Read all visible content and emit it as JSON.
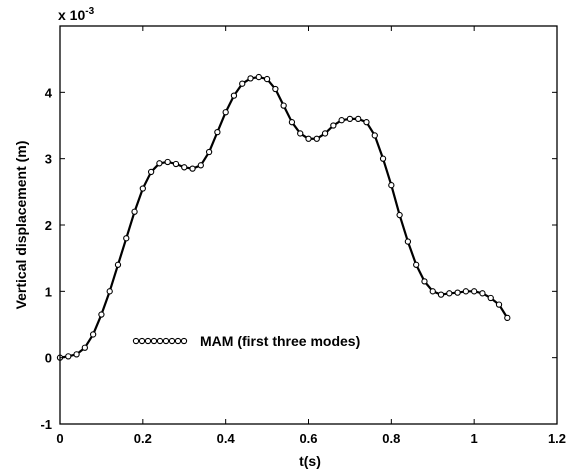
{
  "chart_data": {
    "type": "line",
    "xlabel": "t(s)",
    "ylabel": "Vertical displacement (m)",
    "y_multiplier_base": "x 10",
    "y_multiplier_exp": "-3",
    "xlim": [
      0,
      1.2
    ],
    "ylim": [
      -1,
      5
    ],
    "x_ticks": [
      0,
      0.2,
      0.4,
      0.6,
      0.8,
      1,
      1.2
    ],
    "x_tick_labels": [
      "0",
      "0.2",
      "0.4",
      "0.6",
      "0.8",
      "1",
      "1.2"
    ],
    "y_ticks": [
      -1,
      0,
      1,
      2,
      3,
      4
    ],
    "y_tick_labels": [
      "-1",
      "0",
      "1",
      "2",
      "3",
      "4"
    ],
    "grid": false,
    "legend_position": "lower-left",
    "series": [
      {
        "name": "MAM (first three modes)",
        "marker": "circle",
        "color": "#000000",
        "x": [
          0,
          0.02,
          0.04,
          0.06,
          0.08,
          0.1,
          0.12,
          0.14,
          0.16,
          0.18,
          0.2,
          0.22,
          0.24,
          0.26,
          0.28,
          0.3,
          0.32,
          0.34,
          0.36,
          0.38,
          0.4,
          0.42,
          0.44,
          0.46,
          0.48,
          0.5,
          0.52,
          0.54,
          0.56,
          0.58,
          0.6,
          0.62,
          0.64,
          0.66,
          0.68,
          0.7,
          0.72,
          0.74,
          0.76,
          0.78,
          0.8,
          0.82,
          0.84,
          0.86,
          0.88,
          0.9,
          0.92,
          0.94,
          0.96,
          0.98,
          1.0,
          1.02,
          1.04,
          1.06,
          1.08
        ],
        "y": [
          0,
          0.02,
          0.05,
          0.15,
          0.35,
          0.65,
          1.0,
          1.4,
          1.8,
          2.2,
          2.55,
          2.8,
          2.93,
          2.95,
          2.92,
          2.87,
          2.85,
          2.9,
          3.1,
          3.4,
          3.7,
          3.95,
          4.13,
          4.21,
          4.23,
          4.2,
          4.05,
          3.8,
          3.55,
          3.38,
          3.3,
          3.3,
          3.38,
          3.5,
          3.58,
          3.6,
          3.6,
          3.55,
          3.35,
          3.0,
          2.6,
          2.15,
          1.75,
          1.4,
          1.15,
          1.0,
          0.95,
          0.97,
          0.98,
          1.0,
          1.0,
          0.97,
          0.9,
          0.8,
          0.6
        ]
      }
    ]
  }
}
